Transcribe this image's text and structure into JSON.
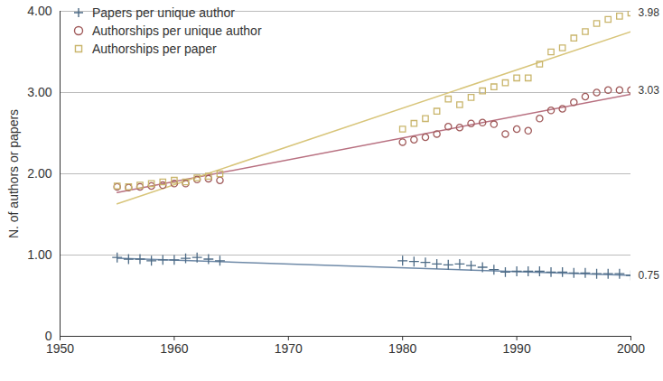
{
  "chart_data": {
    "type": "scatter",
    "y_label": "N. of authors or papers",
    "x": [
      1955,
      1956,
      1957,
      1958,
      1959,
      1960,
      1961,
      1962,
      1963,
      1964,
      1980,
      1981,
      1982,
      1983,
      1984,
      1985,
      1986,
      1987,
      1988,
      1989,
      1990,
      1991,
      1992,
      1993,
      1994,
      1995,
      1996,
      1997,
      1998,
      1999,
      2000
    ],
    "series": [
      {
        "name": "Papers per unique author",
        "color": "#4d6b86",
        "marker": "plus",
        "values": [
          0.97,
          0.95,
          0.95,
          0.93,
          0.94,
          0.94,
          0.96,
          0.97,
          0.95,
          0.93,
          0.93,
          0.92,
          0.91,
          0.89,
          0.88,
          0.89,
          0.87,
          0.85,
          0.82,
          0.79,
          0.8,
          0.8,
          0.8,
          0.79,
          0.79,
          0.78,
          0.78,
          0.77,
          0.77,
          0.77,
          0.75
        ],
        "trend": {
          "x": [
            1955,
            2000
          ],
          "values": [
            0.96,
            0.75
          ],
          "color": "#6f8aa8",
          "line_style": "solid"
        }
      },
      {
        "name": "Authorships per unique author",
        "color": "#a05a5a",
        "marker": "circle",
        "values": [
          1.84,
          1.83,
          1.84,
          1.85,
          1.86,
          1.88,
          1.88,
          1.93,
          1.94,
          1.92,
          2.39,
          2.42,
          2.45,
          2.49,
          2.58,
          2.57,
          2.62,
          2.63,
          2.61,
          2.49,
          2.55,
          2.53,
          2.68,
          2.78,
          2.8,
          2.88,
          2.95,
          3.0,
          3.03,
          3.03,
          3.03
        ],
        "trend": {
          "x": [
            1955,
            2000
          ],
          "values": [
            1.77,
            2.98
          ],
          "color": "#b87080",
          "line_style": "solid"
        }
      },
      {
        "name": "Authorships per paper",
        "color": "#c9b56b",
        "marker": "square",
        "values": [
          1.85,
          1.84,
          1.86,
          1.88,
          1.9,
          1.92,
          1.9,
          1.95,
          1.97,
          2.0,
          2.55,
          2.62,
          2.68,
          2.77,
          2.92,
          2.85,
          2.94,
          3.02,
          3.07,
          3.12,
          3.18,
          3.18,
          3.35,
          3.5,
          3.55,
          3.67,
          3.75,
          3.85,
          3.9,
          3.94,
          3.98
        ],
        "trend": {
          "x": [
            1955,
            2000
          ],
          "values": [
            1.63,
            3.75
          ],
          "color": "#d8c57a",
          "line_style": "solid"
        }
      }
    ],
    "annotations": [
      {
        "x": 2000,
        "y": 3.98,
        "text": "3.98"
      },
      {
        "x": 2000,
        "y": 3.03,
        "text": "3.03"
      },
      {
        "x": 2000,
        "y": 0.75,
        "text": "0.75"
      }
    ],
    "xlim": [
      1950,
      2000
    ],
    "xticks": [
      1950,
      1960,
      1970,
      1980,
      1990,
      2000
    ],
    "ylim": [
      0,
      4
    ],
    "yticks": [
      0,
      {
        "value": 1,
        "label": "1.00"
      },
      {
        "value": 2,
        "label": "2.00"
      },
      {
        "value": 3,
        "label": "3.00"
      },
      {
        "value": 4,
        "label": "4.00"
      }
    ],
    "grid": true,
    "legend": "top-left"
  }
}
